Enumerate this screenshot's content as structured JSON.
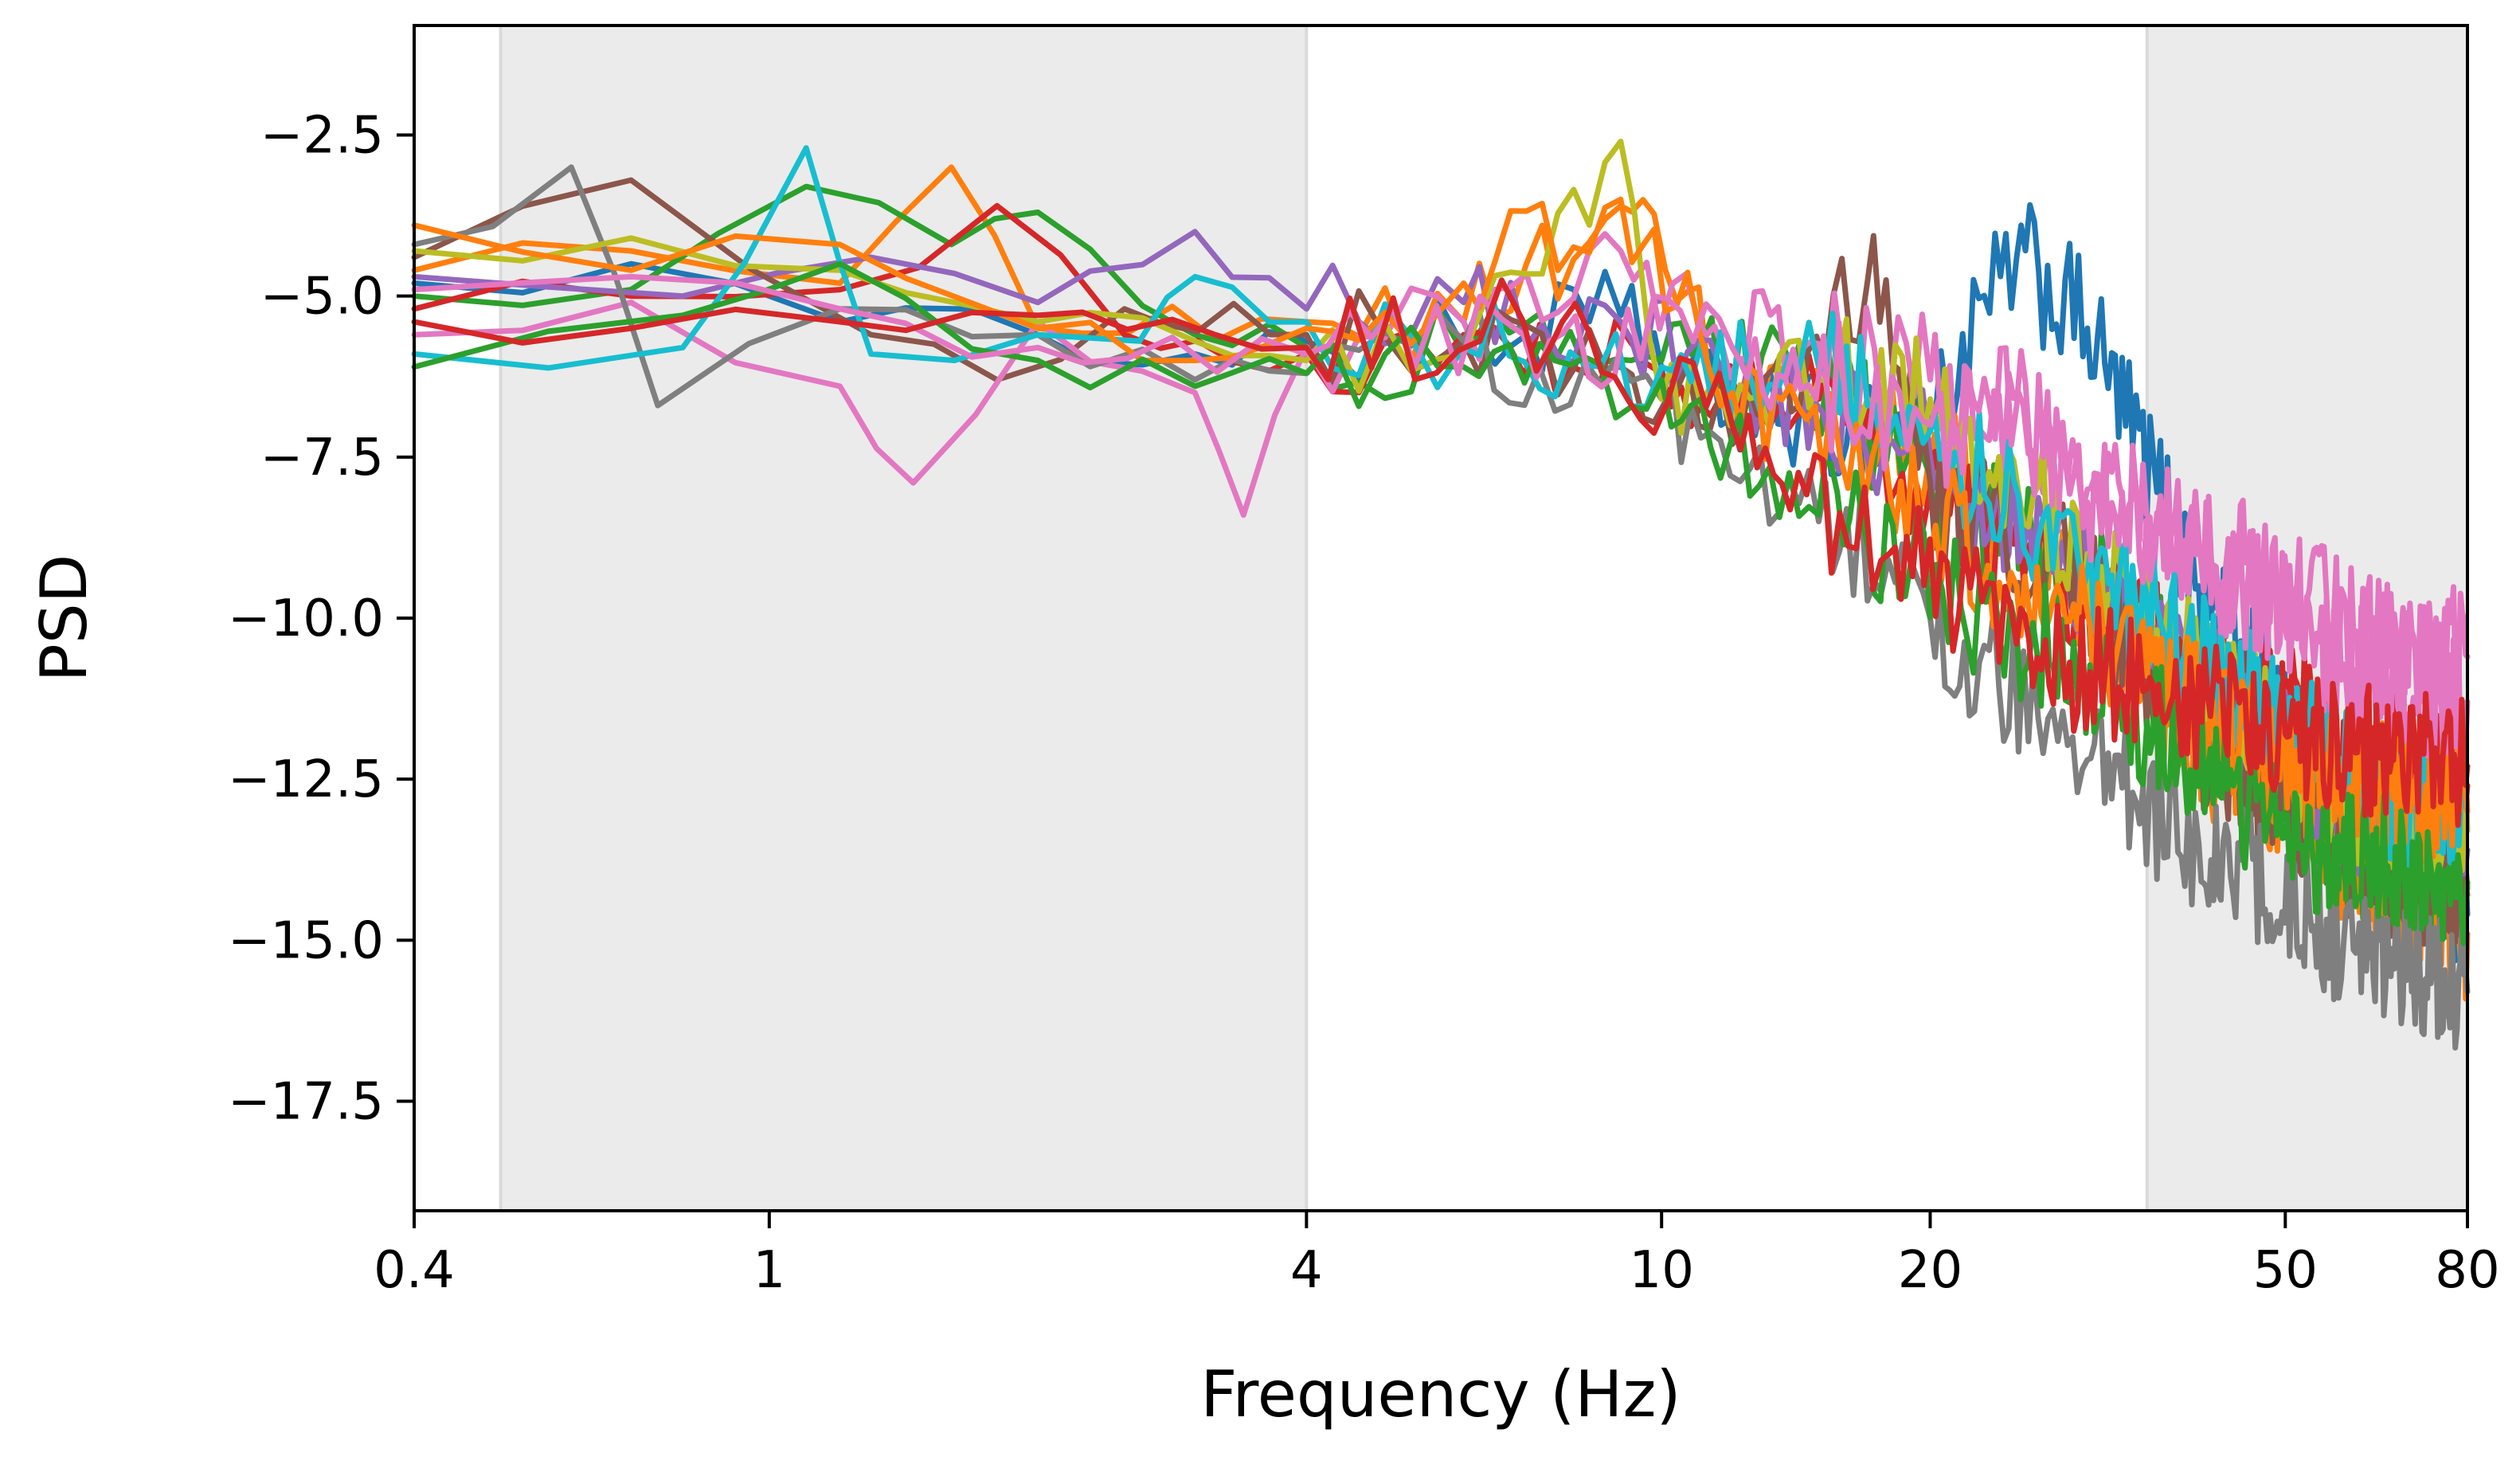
{
  "chart_data": {
    "type": "line",
    "title": "",
    "xlabel": "Frequency (Hz)",
    "ylabel": "PSD",
    "x_scale": "log",
    "xlim": [
      0.4,
      80
    ],
    "ylim": [
      -19.2,
      -0.8
    ],
    "x_ticks": [
      0.4,
      1,
      4,
      10,
      20,
      50,
      80
    ],
    "x_tick_labels": [
      "0.4",
      "1",
      "4",
      "10",
      "20",
      "50",
      "80"
    ],
    "y_ticks": [
      -2.5,
      -5.0,
      -7.5,
      -10.0,
      -12.5,
      -15.0,
      -17.5
    ],
    "y_tick_labels": [
      "−2.5",
      "−5.0",
      "−7.5",
      "−10.0",
      "−12.5",
      "−15.0",
      "−17.5"
    ],
    "grid": false,
    "legend": "none",
    "shaded_bands": [
      {
        "x_start": 0.5,
        "x_end": 4,
        "color": "#ebebeb"
      },
      {
        "x_start": 35,
        "x_end": 80,
        "color": "#ebebeb"
      }
    ],
    "series": [
      {
        "color": "#1f77b4",
        "values": [
          [
            0.4,
            -4.8
          ],
          [
            0.7,
            -4.5
          ],
          [
            1.2,
            -5.4
          ],
          [
            2,
            -5.6
          ],
          [
            3,
            -5.9
          ],
          [
            4,
            -5.7
          ],
          [
            6,
            -5.8
          ],
          [
            9,
            -5.3
          ],
          [
            12,
            -6.9
          ],
          [
            20,
            -6.9
          ],
          [
            25,
            -4.4
          ],
          [
            30,
            -5.5
          ],
          [
            40,
            -9.5
          ],
          [
            60,
            -12.8
          ],
          [
            80,
            -14.6
          ]
        ]
      },
      {
        "color": "#ff7f0e",
        "values": [
          [
            0.4,
            -4.6
          ],
          [
            0.7,
            -4.3
          ],
          [
            1.2,
            -4.8
          ],
          [
            1.6,
            -3.0
          ],
          [
            2,
            -5.5
          ],
          [
            4,
            -5.4
          ],
          [
            6,
            -5.4
          ],
          [
            9,
            -3.6
          ],
          [
            12,
            -6.4
          ],
          [
            20,
            -7.4
          ],
          [
            30,
            -9.7
          ],
          [
            40,
            -12.0
          ],
          [
            60,
            -13.8
          ],
          [
            80,
            -14.9
          ]
        ]
      },
      {
        "color": "#2ca02c",
        "values": [
          [
            0.4,
            -5.0
          ],
          [
            0.7,
            -4.9
          ],
          [
            1.1,
            -3.3
          ],
          [
            1.6,
            -4.2
          ],
          [
            2,
            -3.7
          ],
          [
            3,
            -5.6
          ],
          [
            4,
            -5.8
          ],
          [
            6,
            -5.9
          ],
          [
            10,
            -6.0
          ],
          [
            14,
            -6.1
          ],
          [
            20,
            -7.8
          ],
          [
            30,
            -9.3
          ],
          [
            40,
            -11.2
          ],
          [
            60,
            -13.6
          ],
          [
            80,
            -14.2
          ]
        ]
      },
      {
        "color": "#d62728",
        "values": [
          [
            0.4,
            -5.2
          ],
          [
            0.7,
            -5.0
          ],
          [
            1.2,
            -4.9
          ],
          [
            1.8,
            -3.6
          ],
          [
            2.5,
            -5.6
          ],
          [
            4,
            -5.9
          ],
          [
            6,
            -5.6
          ],
          [
            10,
            -6.2
          ],
          [
            15,
            -6.6
          ],
          [
            20,
            -8.0
          ],
          [
            30,
            -9.9
          ],
          [
            40,
            -10.8
          ],
          [
            60,
            -12.0
          ],
          [
            80,
            -12.6
          ]
        ]
      },
      {
        "color": "#9467bd",
        "values": [
          [
            0.4,
            -4.7
          ],
          [
            0.8,
            -5.0
          ],
          [
            1.3,
            -4.4
          ],
          [
            2,
            -5.1
          ],
          [
            3,
            -4.0
          ],
          [
            4,
            -5.2
          ],
          [
            6,
            -5.1
          ],
          [
            9,
            -5.4
          ],
          [
            12,
            -6.4
          ],
          [
            20,
            -7.5
          ],
          [
            30,
            -9.4
          ],
          [
            40,
            -11.0
          ],
          [
            60,
            -13.0
          ],
          [
            80,
            -13.6
          ]
        ]
      },
      {
        "color": "#8c564b",
        "values": [
          [
            0.4,
            -4.4
          ],
          [
            0.7,
            -3.2
          ],
          [
            1.3,
            -5.6
          ],
          [
            1.8,
            -6.3
          ],
          [
            2.5,
            -5.2
          ],
          [
            4,
            -5.6
          ],
          [
            6,
            -5.7
          ],
          [
            9,
            -6.1
          ],
          [
            12,
            -7.3
          ],
          [
            17,
            -4.8
          ],
          [
            20,
            -7.9
          ],
          [
            30,
            -9.5
          ],
          [
            40,
            -11.9
          ],
          [
            60,
            -13.7
          ],
          [
            80,
            -14.3
          ]
        ]
      },
      {
        "color": "#e377c2",
        "values": [
          [
            0.4,
            -5.6
          ],
          [
            0.7,
            -5.1
          ],
          [
            1.2,
            -6.4
          ],
          [
            1.45,
            -7.9
          ],
          [
            2,
            -5.4
          ],
          [
            3,
            -6.5
          ],
          [
            3.4,
            -8.4
          ],
          [
            4,
            -5.8
          ],
          [
            6,
            -5.4
          ],
          [
            9,
            -4.3
          ],
          [
            11,
            -5.4
          ],
          [
            20,
            -6.3
          ],
          [
            30,
            -8.0
          ],
          [
            40,
            -8.8
          ],
          [
            60,
            -10.2
          ],
          [
            80,
            -10.6
          ]
        ]
      },
      {
        "color": "#7f7f7f",
        "values": [
          [
            0.4,
            -4.2
          ],
          [
            0.6,
            -3.0
          ],
          [
            0.75,
            -6.7
          ],
          [
            1.2,
            -5.2
          ],
          [
            2,
            -5.6
          ],
          [
            3,
            -6.3
          ],
          [
            4,
            -6.2
          ],
          [
            6,
            -5.7
          ],
          [
            10,
            -6.6
          ],
          [
            15,
            -8.5
          ],
          [
            20,
            -10.0
          ],
          [
            30,
            -12.2
          ],
          [
            40,
            -13.5
          ],
          [
            60,
            -15.2
          ],
          [
            80,
            -15.8
          ]
        ]
      },
      {
        "color": "#bcbd22",
        "values": [
          [
            0.4,
            -4.3
          ],
          [
            0.7,
            -4.1
          ],
          [
            1.2,
            -4.6
          ],
          [
            2,
            -5.4
          ],
          [
            3,
            -5.7
          ],
          [
            4,
            -6.0
          ],
          [
            6,
            -5.9
          ],
          [
            9,
            -2.6
          ],
          [
            10,
            -6.6
          ],
          [
            15,
            -6.3
          ],
          [
            20,
            -6.6
          ],
          [
            30,
            -9.0
          ],
          [
            40,
            -10.9
          ],
          [
            60,
            -12.8
          ],
          [
            80,
            -13.3
          ]
        ]
      },
      {
        "color": "#17becf",
        "values": [
          [
            0.4,
            -5.9
          ],
          [
            0.8,
            -5.8
          ],
          [
            1.1,
            -2.7
          ],
          [
            1.3,
            -5.9
          ],
          [
            2,
            -5.6
          ],
          [
            2.6,
            -5.7
          ],
          [
            3,
            -4.7
          ],
          [
            4,
            -5.4
          ],
          [
            6,
            -5.8
          ],
          [
            10,
            -6.1
          ],
          [
            15,
            -6.1
          ],
          [
            20,
            -7.1
          ],
          [
            30,
            -9.3
          ],
          [
            40,
            -10.6
          ],
          [
            60,
            -12.6
          ],
          [
            80,
            -13.0
          ]
        ]
      },
      {
        "color": "#ff7f0e",
        "values": [
          [
            0.4,
            -3.9
          ],
          [
            0.7,
            -4.6
          ],
          [
            1.2,
            -4.2
          ],
          [
            2,
            -5.5
          ],
          [
            3,
            -6.0
          ],
          [
            4,
            -5.5
          ],
          [
            6,
            -4.8
          ],
          [
            9,
            -3.5
          ],
          [
            12,
            -6.5
          ],
          [
            18,
            -8.0
          ],
          [
            25,
            -9.5
          ],
          [
            35,
            -10.9
          ],
          [
            50,
            -12.3
          ],
          [
            80,
            -13.0
          ]
        ]
      },
      {
        "color": "#2ca02c",
        "values": [
          [
            0.4,
            -6.1
          ],
          [
            0.8,
            -5.3
          ],
          [
            1.2,
            -4.5
          ],
          [
            2,
            -6.0
          ],
          [
            3,
            -6.4
          ],
          [
            4,
            -6.2
          ],
          [
            6,
            -6.1
          ],
          [
            10,
            -6.3
          ],
          [
            15,
            -8.4
          ],
          [
            25,
            -10.2
          ],
          [
            35,
            -11.6
          ],
          [
            50,
            -13.4
          ],
          [
            80,
            -14.1
          ]
        ]
      },
      {
        "color": "#e377c2",
        "values": [
          [
            0.4,
            -4.9
          ],
          [
            0.7,
            -4.7
          ],
          [
            1.2,
            -5.2
          ],
          [
            2,
            -5.8
          ],
          [
            4,
            -5.9
          ],
          [
            7,
            -5.6
          ],
          [
            12,
            -5.8
          ],
          [
            20,
            -7.0
          ],
          [
            25,
            -6.7
          ],
          [
            30,
            -8.2
          ],
          [
            40,
            -9.0
          ],
          [
            60,
            -10.8
          ],
          [
            80,
            -11.3
          ]
        ]
      },
      {
        "color": "#d62728",
        "values": [
          [
            0.4,
            -5.4
          ],
          [
            0.7,
            -5.5
          ],
          [
            1.2,
            -5.4
          ],
          [
            2,
            -5.3
          ],
          [
            4,
            -5.8
          ],
          [
            7,
            -5.4
          ],
          [
            12,
            -7.0
          ],
          [
            18,
            -9.0
          ],
          [
            25,
            -10.4
          ],
          [
            35,
            -11.1
          ],
          [
            50,
            -11.8
          ],
          [
            80,
            -12.3
          ]
        ]
      }
    ]
  }
}
